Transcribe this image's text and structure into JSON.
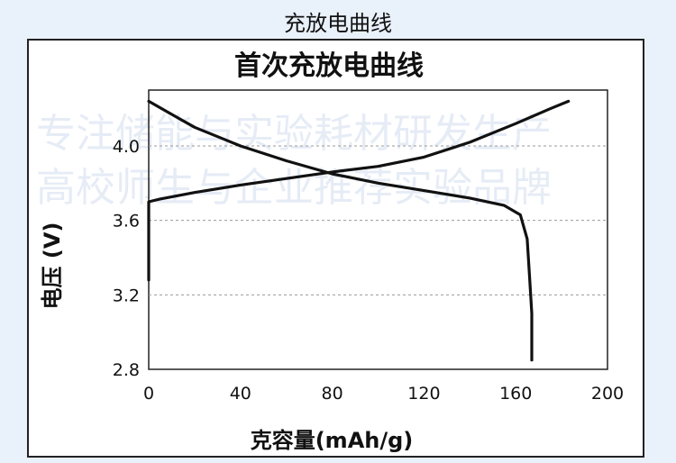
{
  "page_caption": "充放电曲线",
  "watermark": {
    "line1": "专注储能与实验耗材研发生产",
    "line2": "高校师生与企业推荐实验品牌"
  },
  "colors": {
    "background": "#e9f1fb",
    "curve": "#111111",
    "grid": "#9a9a9a"
  },
  "chart_data": {
    "type": "line",
    "title": "首次充放电曲线",
    "xlabel": "克容量(mAh/g)",
    "ylabel": "电压 (V)",
    "xlim": [
      0,
      200
    ],
    "ylim": [
      2.8,
      4.3
    ],
    "x_ticks": [
      0,
      40,
      80,
      120,
      160,
      200
    ],
    "y_ticks": [
      2.8,
      3.2,
      3.6,
      4.0
    ],
    "grid": "horizontal-dashed",
    "series": [
      {
        "values": [
          [
            0,
            3.28
          ],
          [
            0,
            3.7
          ],
          [
            5,
            3.715
          ],
          [
            20,
            3.75
          ],
          [
            40,
            3.79
          ],
          [
            60,
            3.825
          ],
          [
            80,
            3.86
          ],
          [
            100,
            3.89
          ],
          [
            120,
            3.94
          ],
          [
            140,
            4.02
          ],
          [
            160,
            4.12
          ],
          [
            175,
            4.2
          ],
          [
            183,
            4.24
          ]
        ]
      },
      {
        "values": [
          [
            0,
            4.24
          ],
          [
            10,
            4.17
          ],
          [
            20,
            4.1
          ],
          [
            40,
            4.0
          ],
          [
            60,
            3.92
          ],
          [
            80,
            3.85
          ],
          [
            100,
            3.8
          ],
          [
            120,
            3.76
          ],
          [
            140,
            3.72
          ],
          [
            155,
            3.68
          ],
          [
            162,
            3.63
          ],
          [
            165,
            3.5
          ],
          [
            166,
            3.3
          ],
          [
            167,
            3.1
          ],
          [
            167,
            2.85
          ]
        ]
      }
    ]
  }
}
